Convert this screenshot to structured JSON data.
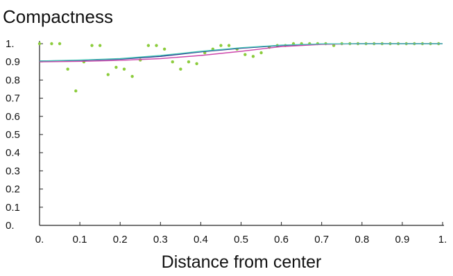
{
  "chart_data": {
    "type": "scatter",
    "title": "Compactness",
    "xlabel": "Distance from center",
    "ylabel": "",
    "xlim": [
      0,
      1
    ],
    "ylim": [
      0,
      1
    ],
    "x_ticks": [
      "0.",
      "0.1",
      "0.2",
      "0.3",
      "0.4",
      "0.5",
      "0.6",
      "0.7",
      "0.8",
      "0.9",
      "1."
    ],
    "y_ticks": [
      "0.",
      "0.1",
      "0.2",
      "0.3",
      "0.4",
      "0.5",
      "0.6",
      "0.7",
      "0.8",
      "0.9",
      "1."
    ],
    "grid": false,
    "series": [
      {
        "type": "scatter",
        "color": "#8ccc3c",
        "x": [
          0.0,
          0.03,
          0.05,
          0.07,
          0.09,
          0.11,
          0.13,
          0.15,
          0.17,
          0.19,
          0.21,
          0.23,
          0.25,
          0.27,
          0.29,
          0.31,
          0.33,
          0.35,
          0.37,
          0.39,
          0.41,
          0.43,
          0.45,
          0.47,
          0.49,
          0.51,
          0.53,
          0.55,
          0.57,
          0.59,
          0.61,
          0.63,
          0.65,
          0.67,
          0.69,
          0.71,
          0.73,
          0.75,
          0.77,
          0.79,
          0.81,
          0.83,
          0.85,
          0.87,
          0.89,
          0.91,
          0.93,
          0.95,
          0.97,
          0.99
        ],
        "y": [
          1.0,
          1.0,
          1.0,
          0.86,
          0.74,
          0.9,
          0.99,
          0.99,
          0.83,
          0.87,
          0.86,
          0.82,
          0.91,
          0.99,
          0.99,
          0.97,
          0.9,
          0.86,
          0.9,
          0.89,
          0.95,
          0.97,
          0.99,
          0.99,
          0.97,
          0.94,
          0.93,
          0.95,
          0.98,
          0.99,
          0.99,
          1.0,
          1.0,
          1.0,
          1.0,
          1.0,
          0.99,
          1.0,
          1.0,
          1.0,
          1.0,
          1.0,
          1.0,
          1.0,
          1.0,
          1.0,
          1.0,
          1.0,
          1.0,
          1.0
        ]
      },
      {
        "type": "line",
        "color": "#2a2a8c",
        "x": [
          0.0,
          0.1,
          0.2,
          0.3,
          0.4,
          0.5,
          0.6,
          0.7,
          0.8,
          0.9,
          1.0
        ],
        "y": [
          0.905,
          0.908,
          0.915,
          0.93,
          0.955,
          0.975,
          0.99,
          0.998,
          1.0,
          1.0,
          1.0
        ]
      },
      {
        "type": "line",
        "color": "#cc44aa",
        "x": [
          0.0,
          0.1,
          0.2,
          0.3,
          0.4,
          0.5,
          0.6,
          0.7,
          0.8,
          0.9,
          1.0
        ],
        "y": [
          0.9,
          0.903,
          0.908,
          0.918,
          0.935,
          0.958,
          0.984,
          0.996,
          1.0,
          1.0,
          1.0
        ]
      },
      {
        "type": "line",
        "color": "#44c4b4",
        "x": [
          0.0,
          0.1,
          0.2,
          0.3,
          0.4,
          0.5,
          0.6,
          0.7,
          0.8,
          0.9,
          1.0
        ],
        "y": [
          0.905,
          0.91,
          0.918,
          0.935,
          0.958,
          0.978,
          0.992,
          0.999,
          1.0,
          1.0,
          1.0
        ]
      }
    ]
  }
}
